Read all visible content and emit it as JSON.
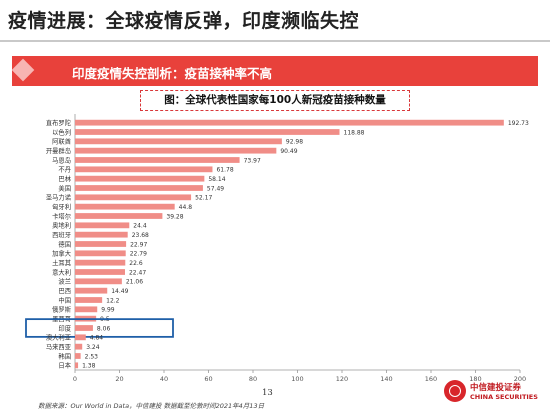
{
  "header": {
    "title": "疫情进展：全球疫情反弹，印度濒临失控"
  },
  "banner": {
    "text": "印度疫情失控剖析：疫苗接种率不高"
  },
  "caption": {
    "text": "图：全球代表性国家每100人新冠疫苗接种数量"
  },
  "colors": {
    "accent": "#e8413b",
    "bar": "#f08d87",
    "highlight_box": "#1f5fa8",
    "brand": "#c0191f"
  },
  "chart_data": {
    "type": "bar",
    "orientation": "horizontal",
    "title": "图：全球代表性国家每100人新冠疫苗接种数量",
    "categories": [
      "直布罗陀",
      "以色列",
      "阿联酋",
      "开曼群岛",
      "马恩岛",
      "不丹",
      "巴林",
      "美国",
      "圣马力诺",
      "匈牙利",
      "卡塔尔",
      "奥地利",
      "西班牙",
      "德国",
      "加拿大",
      "土耳其",
      "意大利",
      "波兰",
      "巴西",
      "中国",
      "俄罗斯",
      "墨西哥",
      "印度",
      "澳大利亚",
      "马来西亚",
      "韩国",
      "日本"
    ],
    "values": [
      192.73,
      118.88,
      92.98,
      90.49,
      73.97,
      61.78,
      58.14,
      57.49,
      52.17,
      44.8,
      39.28,
      24.4,
      23.68,
      22.97,
      22.79,
      22.6,
      22.47,
      21.06,
      14.49,
      12.2,
      9.99,
      9.5,
      8.06,
      4.84,
      3.24,
      2.53,
      1.38
    ],
    "value_labels": [
      "192.73",
      "118.88",
      "92.98",
      "90.49",
      "73.97",
      "61.78",
      "58.14",
      "57.49",
      "52.17",
      "44.8",
      "39.28",
      "24.4",
      "23.68",
      "22.97",
      "22.79",
      "22.6",
      "22.47",
      "21.06",
      "14.49",
      "12.2",
      "9.99",
      "9.5",
      "8.06",
      "4.84",
      "3.24",
      "2.53",
      "1.38"
    ],
    "x_ticks": [
      "0",
      "20",
      "40",
      "60",
      "80",
      "100",
      "120",
      "140",
      "160",
      "180",
      "200"
    ],
    "xlim": [
      0,
      200
    ],
    "highlighted": "印度",
    "grid": false,
    "xlabel": "",
    "ylabel": ""
  },
  "footer": {
    "source": "数据来源：Our World in Data，中信建投 数据截至伦敦时间2021年4月13日",
    "page_number": "13",
    "brand_cn": "中信建投证券",
    "brand_en": "CHINA SECURITIES"
  }
}
